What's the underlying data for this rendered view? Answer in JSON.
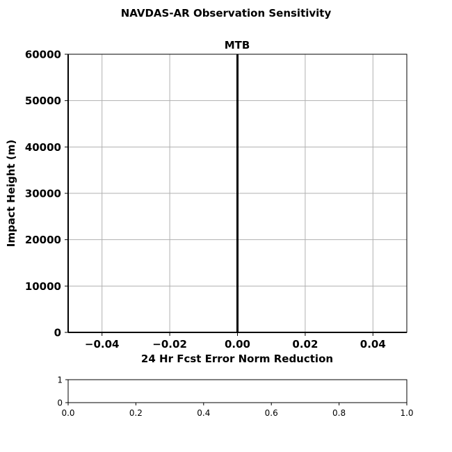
{
  "figure": {
    "suptitle": "NAVDAS-AR Observation Sensitivity"
  },
  "chart_data": [
    {
      "type": "bar",
      "title": "MTB",
      "xlabel": "24 Hr Fcst Error Norm Reduction",
      "ylabel": "Impact Height (m)",
      "xlim": [
        -0.05,
        0.05
      ],
      "ylim": [
        0,
        60000
      ],
      "xticks": [
        -0.04,
        -0.02,
        0.0,
        0.02,
        0.04
      ],
      "xtick_labels": [
        "−0.04",
        "−0.02",
        "0.00",
        "0.02",
        "0.04"
      ],
      "yticks": [
        0,
        10000,
        20000,
        30000,
        40000,
        50000,
        60000
      ],
      "ytick_labels": [
        "0",
        "10000",
        "20000",
        "30000",
        "40000",
        "50000",
        "60000"
      ],
      "grid": true,
      "zero_line": 0.0,
      "series": []
    },
    {
      "type": "bar",
      "title": "",
      "xlim": [
        0.0,
        1.0
      ],
      "ylim": [
        0,
        1
      ],
      "xticks": [
        0.0,
        0.2,
        0.4,
        0.6,
        0.8,
        1.0
      ],
      "xtick_labels": [
        "0.0",
        "0.2",
        "0.4",
        "0.6",
        "0.8",
        "1.0"
      ],
      "yticks": [
        0,
        1
      ],
      "ytick_labels": [
        "0",
        "1"
      ],
      "grid": false,
      "series": []
    }
  ]
}
